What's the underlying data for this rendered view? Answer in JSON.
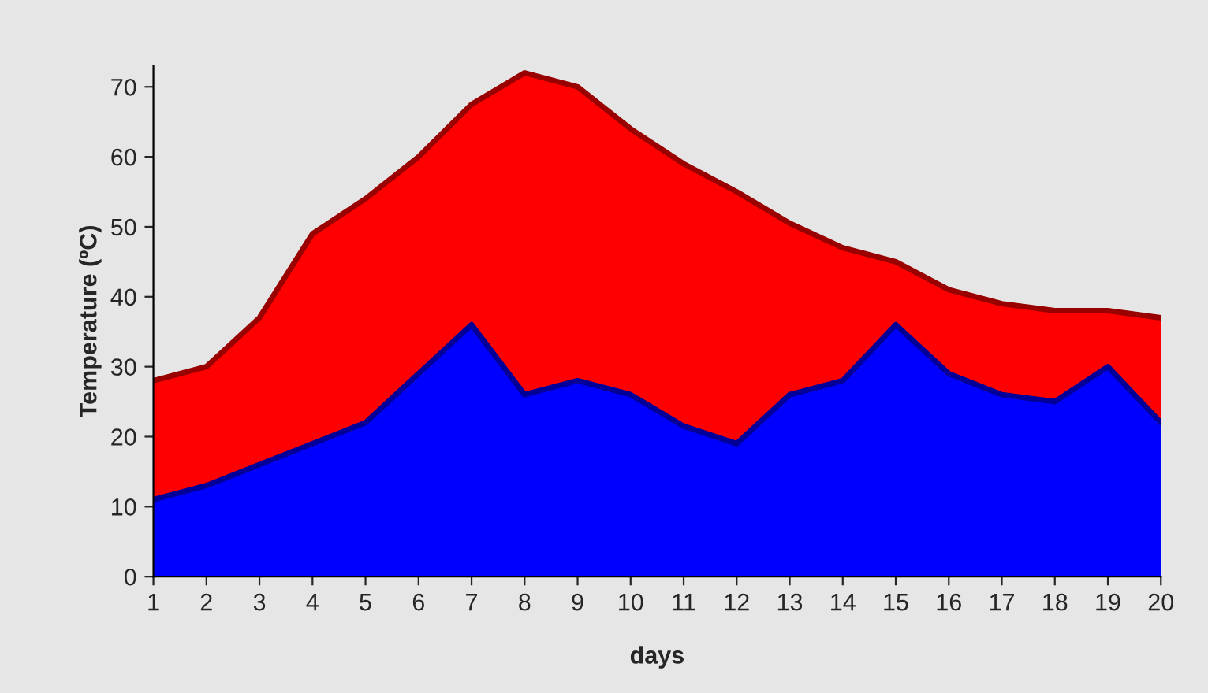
{
  "chart_data": {
    "type": "area",
    "xlabel": "days",
    "ylabel": "Temperature (ºC)",
    "categories": [
      "1",
      "2",
      "3",
      "4",
      "5",
      "6",
      "7",
      "8",
      "9",
      "10",
      "11",
      "12",
      "13",
      "14",
      "15",
      "16",
      "17",
      "18",
      "19",
      "20"
    ],
    "series": [
      {
        "color": "#ff0000",
        "values": [
          28,
          30,
          37,
          49,
          54,
          60,
          67.5,
          72,
          70,
          64,
          59,
          55,
          50.5,
          47,
          45,
          41,
          39,
          38,
          38,
          37
        ]
      },
      {
        "color": "#0000ff",
        "values": [
          11,
          13,
          16,
          19,
          22,
          29,
          36,
          26,
          28,
          26,
          21.5,
          19,
          26,
          28,
          36,
          29,
          26,
          25,
          30,
          22
        ]
      }
    ],
    "ylim": [
      0,
      73
    ],
    "yticks": [
      0,
      10,
      20,
      30,
      40,
      50,
      60,
      70
    ],
    "grid": false,
    "legend": false
  }
}
